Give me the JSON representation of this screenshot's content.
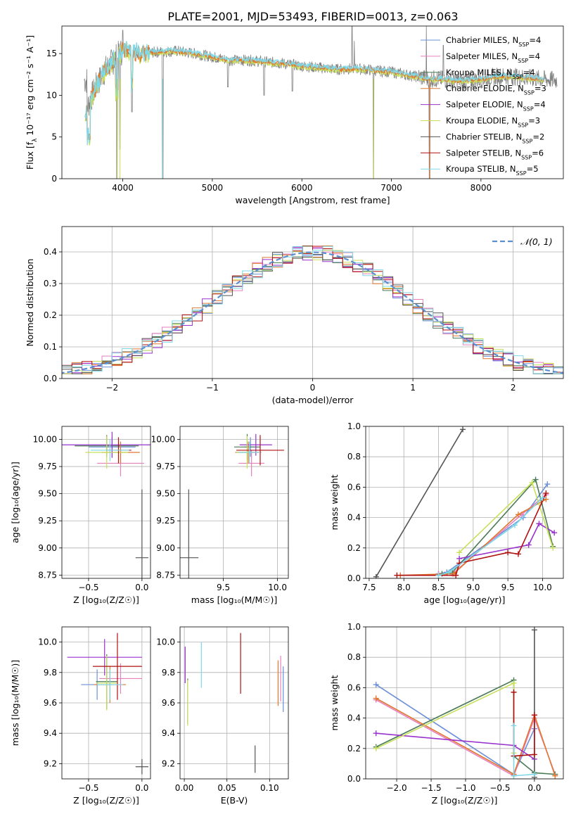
{
  "figure": {
    "title": "PLATE=2001, MJD=53493, FIBERID=0013, z=0.063"
  },
  "colors": {
    "chabrier_miles": "#6a8fd8",
    "salpeter_miles": "#e87fbd",
    "kroupa_miles": "#4a7a55",
    "chabrier_elodie": "#e07830",
    "salpeter_elodie": "#9932cc",
    "kroupa_elodie": "#c8e05a",
    "chabrier_stelib": "#555555",
    "salpeter_stelib": "#b01010",
    "kroupa_stelib": "#7fd8e8",
    "data": "#808080",
    "normal": "#5b8fd0"
  },
  "chart_data": [
    {
      "id": "spectrum",
      "type": "line",
      "xlabel": "wavelength [Angstrom, rest frame]",
      "ylabel": "Flux [f_λ 10⁻¹⁷ erg cm⁻² s⁻¹ A⁻¹]",
      "xlim": [
        3320,
        8920
      ],
      "ylim": [
        0,
        18.3
      ],
      "xticks": [
        4000,
        5000,
        6000,
        7000,
        8000
      ],
      "yticks": [
        0,
        5,
        10,
        15
      ],
      "legend_position": "top-right",
      "legend": [
        "Chabrier MILES, N_SSP=4",
        "Salpeter MILES, N_SSP=4",
        "Kroupa MILES, N_SSP=4",
        "Chabrier ELODIE, N_SSP=3",
        "Salpeter ELODIE, N_SSP=4",
        "Kroupa ELODIE, N_SSP=3",
        "Chabrier STELIB, N_SSP=2",
        "Salpeter STELIB, N_SSP=6",
        "Kroupa STELIB, N_SSP=5"
      ],
      "continuum": {
        "x": [
          3600,
          3700,
          3800,
          3900,
          4000,
          4100,
          4200,
          4400,
          4600,
          4800,
          5000,
          5200,
          5400,
          5600,
          5800,
          6000,
          6200,
          6400,
          6600,
          6800,
          7000,
          7200,
          7400,
          7600,
          7800,
          8000,
          8200,
          8400,
          8600,
          8850
        ],
        "y": [
          8.5,
          11.0,
          13.0,
          14.2,
          15.4,
          15.2,
          15.0,
          15.2,
          15.3,
          15.0,
          14.6,
          14.2,
          14.2,
          14.0,
          13.8,
          13.5,
          13.3,
          13.1,
          13.2,
          13.0,
          12.8,
          12.4,
          12.0,
          11.9,
          11.7,
          11.9,
          12.3,
          12.2,
          12.0,
          11.8
        ]
      },
      "dips": [
        {
          "x": 3934,
          "y": 0
        },
        {
          "x": 3968,
          "y": 3.5
        },
        {
          "x": 4101,
          "y": 8.0
        },
        {
          "x": 4445,
          "y": 0
        },
        {
          "x": 5175,
          "y": 11.0
        },
        {
          "x": 5577,
          "y": 10.0
        },
        {
          "x": 5893,
          "y": 10.5
        },
        {
          "x": 6800,
          "y": 0
        },
        {
          "x": 7425,
          "y": 0
        }
      ],
      "spikes": [
        {
          "x": 4000,
          "y": 17.8
        },
        {
          "x": 6560,
          "y": 18.3
        },
        {
          "x": 6585,
          "y": 16.5
        },
        {
          "x": 7390,
          "y": 18.3
        },
        {
          "x": 7580,
          "y": 16.0
        }
      ]
    },
    {
      "id": "residuals",
      "type": "line",
      "xlabel": "(data-model)/error",
      "ylabel": "Normed distribution",
      "xlim": [
        -2.5,
        2.5
      ],
      "ylim": [
        0,
        0.48
      ],
      "xticks": [
        -2,
        -1,
        0,
        1,
        2
      ],
      "yticks": [
        0.0,
        0.1,
        0.2,
        0.3,
        0.4
      ],
      "legend_position": "top-right",
      "legend": [
        "𝒩(0, 1)"
      ],
      "bin_width": 0.1
    },
    {
      "id": "age-z",
      "type": "scatter",
      "xlabel": "Z [log₁₀(Z/Z☉)]",
      "ylabel": "age  [log₁₀(age/yr)]",
      "xlim": [
        -0.75,
        0.08
      ],
      "ylim": [
        8.72,
        10.12
      ],
      "xticks": [
        -0.5,
        0.0
      ],
      "yticks": [
        8.75,
        9.0,
        9.25,
        9.5,
        9.75,
        10.0
      ],
      "points": [
        {
          "series": "chabrier_miles",
          "x": -0.28,
          "xerr": 0.22,
          "y": 9.93,
          "yerr": 0.09
        },
        {
          "series": "salpeter_miles",
          "x": -0.2,
          "xerr": 0.22,
          "y": 9.78,
          "yerr": 0.12
        },
        {
          "series": "kroupa_miles",
          "x": -0.33,
          "xerr": 0.3,
          "y": 9.94,
          "yerr": 0.1
        },
        {
          "series": "chabrier_elodie",
          "x": -0.2,
          "xerr": 0.18,
          "y": 9.88,
          "yerr": 0.1
        },
        {
          "series": "salpeter_elodie",
          "x": -0.28,
          "xerr": 0.48,
          "y": 9.95,
          "yerr": 0.12
        },
        {
          "series": "kroupa_elodie",
          "x": -0.33,
          "xerr": 0.2,
          "y": 9.88,
          "yerr": 0.15
        },
        {
          "series": "chabrier_stelib",
          "x": 0.0,
          "xerr": 0.06,
          "y": 8.91,
          "yerr": 0.63
        },
        {
          "series": "salpeter_stelib",
          "x": -0.22,
          "xerr": 0.12,
          "y": 9.9,
          "yerr": 0.12
        },
        {
          "series": "kroupa_stelib",
          "x": -0.3,
          "xerr": 0.18,
          "y": 9.9,
          "yerr": 0.1
        }
      ]
    },
    {
      "id": "age-mass",
      "type": "scatter",
      "xlabel": "mass [log₁₀(M/M☉)]",
      "ylabel": "",
      "xlim": [
        9.1,
        10.1
      ],
      "ylim": [
        8.72,
        10.12
      ],
      "xticks": [
        9.5,
        10.0
      ],
      "yticks": [
        8.75,
        9.0,
        9.25,
        9.5,
        9.75,
        10.0
      ],
      "points": [
        {
          "series": "chabrier_miles",
          "x": 9.75,
          "xerr": 0.06,
          "y": 9.93,
          "yerr": 0.09
        },
        {
          "series": "salpeter_miles",
          "x": 9.76,
          "xerr": 0.12,
          "y": 9.78,
          "yerr": 0.12
        },
        {
          "series": "kroupa_miles",
          "x": 9.72,
          "xerr": 0.12,
          "y": 9.93,
          "yerr": 0.12
        },
        {
          "series": "chabrier_elodie",
          "x": 9.73,
          "xerr": 0.12,
          "y": 9.88,
          "yerr": 0.1
        },
        {
          "series": "salpeter_elodie",
          "x": 9.8,
          "xerr": 0.15,
          "y": 9.95,
          "yerr": 0.1
        },
        {
          "series": "kroupa_elodie",
          "x": 9.72,
          "xerr": 0.1,
          "y": 9.88,
          "yerr": 0.15
        },
        {
          "series": "chabrier_stelib",
          "x": 9.18,
          "xerr": 0.09,
          "y": 8.91,
          "yerr": 0.63
        },
        {
          "series": "salpeter_stelib",
          "x": 9.84,
          "xerr": 0.22,
          "y": 9.9,
          "yerr": 0.14
        },
        {
          "series": "kroupa_stelib",
          "x": 9.74,
          "xerr": 0.1,
          "y": 9.88,
          "yerr": 0.1
        }
      ]
    },
    {
      "id": "weight-age",
      "type": "line",
      "xlabel": "age  [log₁₀(age/yr)]",
      "ylabel": "mass weight",
      "xlim": [
        7.45,
        10.3
      ],
      "ylim": [
        0,
        1.0
      ],
      "xticks": [
        7.5,
        8.0,
        8.5,
        9.0,
        9.5,
        10.0
      ],
      "yticks": [
        0.0,
        0.2,
        0.4,
        0.6,
        0.8,
        1.0
      ],
      "series": [
        {
          "series": "chabrier_miles",
          "x": [
            8.5,
            8.62,
            9.72,
            10.07
          ],
          "y": [
            0.03,
            0.04,
            0.4,
            0.62
          ]
        },
        {
          "series": "salpeter_miles",
          "x": [
            8.5,
            8.7,
            9.7,
            10.05
          ],
          "y": [
            0.03,
            0.03,
            0.42,
            0.55
          ]
        },
        {
          "series": "kroupa_miles",
          "x": [
            8.55,
            8.7,
            9.9,
            10.15
          ],
          "y": [
            0.03,
            0.04,
            0.65,
            0.21
          ]
        },
        {
          "series": "chabrier_elodie",
          "x": [
            7.95,
            8.72,
            9.65,
            10.05
          ],
          "y": [
            0.02,
            0.03,
            0.42,
            0.52
          ]
        },
        {
          "series": "salpeter_elodie",
          "x": [
            8.8,
            9.8,
            9.95,
            10.17
          ],
          "y": [
            0.13,
            0.22,
            0.36,
            0.3
          ]
        },
        {
          "series": "kroupa_elodie",
          "x": [
            8.8,
            9.85,
            10.15
          ],
          "y": [
            0.17,
            0.63,
            0.2
          ]
        },
        {
          "series": "chabrier_stelib",
          "x": [
            7.6,
            8.85
          ],
          "y": [
            0.01,
            0.98
          ]
        },
        {
          "series": "salpeter_stelib",
          "x": [
            7.9,
            8.75,
            8.8,
            9.5,
            9.65,
            10.05
          ],
          "y": [
            0.02,
            0.02,
            0.1,
            0.17,
            0.16,
            0.56
          ]
        },
        {
          "series": "kroupa_stelib",
          "x": [
            8.5,
            8.65,
            9.6,
            10.0
          ],
          "y": [
            0.02,
            0.04,
            0.35,
            0.53
          ]
        }
      ]
    },
    {
      "id": "mass-z",
      "type": "scatter",
      "xlabel": "Z [log₁₀(Z/Z☉)]",
      "ylabel": "mass [log₁₀(M/M☉)]",
      "xlim": [
        -0.75,
        0.08
      ],
      "ylim": [
        9.1,
        10.1
      ],
      "xticks": [
        -0.5,
        0.0
      ],
      "yticks": [
        9.2,
        9.4,
        9.6,
        9.8,
        10.0
      ],
      "points": [
        {
          "series": "chabrier_miles",
          "x": -0.42,
          "xerr": 0.15,
          "y": 9.72,
          "yerr": 0.1
        },
        {
          "series": "salpeter_miles",
          "x": -0.2,
          "xerr": 0.2,
          "y": 9.76,
          "yerr": 0.1
        },
        {
          "series": "kroupa_miles",
          "x": -0.33,
          "xerr": 0.1,
          "y": 9.74,
          "yerr": 0.18
        },
        {
          "series": "chabrier_elodie",
          "x": -0.3,
          "xerr": 0.15,
          "y": 9.72,
          "yerr": 0.12
        },
        {
          "series": "salpeter_elodie",
          "x": -0.35,
          "xerr": 0.35,
          "y": 9.9,
          "yerr": 0.12
        },
        {
          "series": "kroupa_elodie",
          "x": -0.33,
          "xerr": 0.1,
          "y": 9.73,
          "yerr": 0.18
        },
        {
          "series": "chabrier_stelib",
          "x": 0.0,
          "xerr": 0.06,
          "y": 9.18,
          "yerr": 0.05
        },
        {
          "series": "salpeter_stelib",
          "x": -0.23,
          "xerr": 0.23,
          "y": 9.84,
          "yerr": 0.22
        },
        {
          "series": "kroupa_stelib",
          "x": -0.3,
          "xerr": 0.12,
          "y": 9.72,
          "yerr": 0.1
        }
      ]
    },
    {
      "id": "mass-ebv",
      "type": "scatter",
      "xlabel": "E(B-V)",
      "ylabel": "",
      "xlim": [
        -0.005,
        0.122
      ],
      "ylim": [
        9.1,
        10.1
      ],
      "xticks": [
        0.0,
        0.05,
        0.1
      ],
      "yticks": [
        9.2,
        9.4,
        9.6,
        9.8,
        10.0
      ],
      "points": [
        {
          "series": "chabrier_miles",
          "x": 0.116,
          "y": 9.69,
          "yerr": 0.15
        },
        {
          "series": "salpeter_miles",
          "x": 0.113,
          "y": 9.76,
          "yerr": 0.15
        },
        {
          "series": "kroupa_miles",
          "x": 0.004,
          "y": 9.61,
          "yerr": 0.15
        },
        {
          "series": "chabrier_elodie",
          "x": 0.11,
          "y": 9.73,
          "yerr": 0.15
        },
        {
          "series": "salpeter_elodie",
          "x": 0.001,
          "y": 9.85,
          "yerr": 0.12
        },
        {
          "series": "kroupa_elodie",
          "x": 0.004,
          "y": 9.6,
          "yerr": 0.15
        },
        {
          "series": "chabrier_stelib",
          "x": 0.083,
          "y": 9.23,
          "yerr": 0.09
        },
        {
          "series": "salpeter_stelib",
          "x": 0.066,
          "y": 9.86,
          "yerr": 0.2
        },
        {
          "series": "kroupa_stelib",
          "x": 0.02,
          "y": 9.85,
          "yerr": 0.15
        }
      ]
    },
    {
      "id": "weight-z",
      "type": "line",
      "xlabel": "Z [log₁₀(Z/Z☉)]",
      "ylabel": "mass weight",
      "xlim": [
        -2.45,
        0.42
      ],
      "ylim": [
        0,
        1.0
      ],
      "xticks": [
        -2.0,
        -1.5,
        -1.0,
        -0.5,
        0.0
      ],
      "yticks": [
        0.0,
        0.2,
        0.4,
        0.6,
        0.8,
        1.0
      ],
      "series": [
        {
          "series": "chabrier_miles",
          "x": [
            -2.3,
            -0.3,
            0.0
          ],
          "y": [
            0.62,
            0.03,
            0.33
          ]
        },
        {
          "series": "salpeter_miles",
          "x": [
            -2.3,
            -0.3,
            0.0,
            0.3
          ],
          "y": [
            0.52,
            0.02,
            0.4,
            0.03
          ]
        },
        {
          "series": "kroupa_miles",
          "x": [
            -2.3,
            -0.3,
            -0.3,
            0.0,
            0.3
          ],
          "y": [
            0.21,
            0.65,
            0.15,
            0.04,
            0.03
          ]
        },
        {
          "series": "chabrier_elodie",
          "x": [
            -2.3,
            -0.3,
            0.0,
            0.3
          ],
          "y": [
            0.53,
            0.03,
            0.42,
            0.02
          ]
        },
        {
          "series": "salpeter_elodie",
          "x": [
            -2.3,
            -0.3,
            0.0
          ],
          "y": [
            0.3,
            0.22,
            0.13
          ]
        },
        {
          "series": "kroupa_elodie",
          "x": [
            -2.3,
            -0.3,
            -0.3
          ],
          "y": [
            0.2,
            0.63,
            0.17
          ]
        },
        {
          "series": "chabrier_stelib",
          "x": [
            0.0,
            0.0
          ],
          "y": [
            0.01,
            0.98
          ]
        },
        {
          "series": "salpeter_stelib",
          "x": [
            -0.3,
            -0.3,
            0.0,
            0.0
          ],
          "y": [
            0.57,
            0.15,
            0.16,
            0.42
          ]
        },
        {
          "series": "kroupa_stelib",
          "x": [
            -0.3,
            -0.3,
            0.0
          ],
          "y": [
            0.35,
            0.02,
            0.03
          ]
        }
      ]
    }
  ]
}
